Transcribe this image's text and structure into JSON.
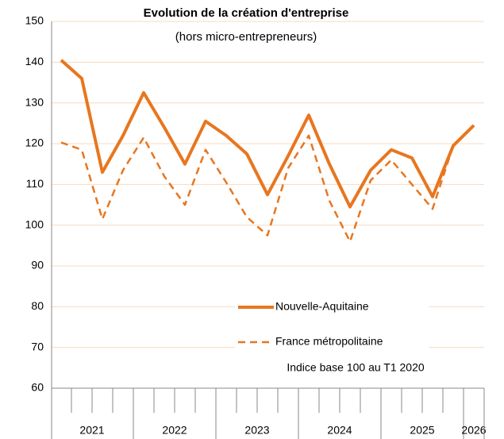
{
  "chart_data": {
    "type": "line",
    "title": "Evolution de la création d'entreprise",
    "subtitle": "(hors micro-entrepreneurs)",
    "annotation": "Indice base 100 au T1 2020",
    "categories": [
      "2021",
      null,
      null,
      null,
      "2022",
      null,
      null,
      null,
      "2023",
      null,
      null,
      null,
      "2024",
      null,
      null,
      null,
      "2025",
      null,
      null,
      null,
      "2026"
    ],
    "series": [
      {
        "name": "Nouvelle-Aquitaine",
        "color": "#e8761f",
        "dash": false,
        "values": [
          140.5,
          136,
          113,
          122,
          132.5,
          124,
          115,
          125.5,
          122,
          117.5,
          107.5,
          117,
          127,
          115,
          104.5,
          113.5,
          118.5,
          116.5,
          107,
          119.5,
          124.5
        ]
      },
      {
        "name": "France métropolitaine",
        "color": "#e8761f",
        "dash": true,
        "values": [
          120.3,
          118.5,
          101.5,
          113.5,
          121.5,
          112,
          105,
          118.5,
          110.5,
          102,
          97.5,
          114,
          122,
          106,
          96,
          111,
          116,
          110,
          104,
          119.5,
          124.5
        ]
      }
    ],
    "ylim": [
      60,
      150
    ],
    "yticks": [
      60,
      70,
      80,
      90,
      100,
      110,
      120,
      130,
      140,
      150
    ],
    "grid": true
  }
}
